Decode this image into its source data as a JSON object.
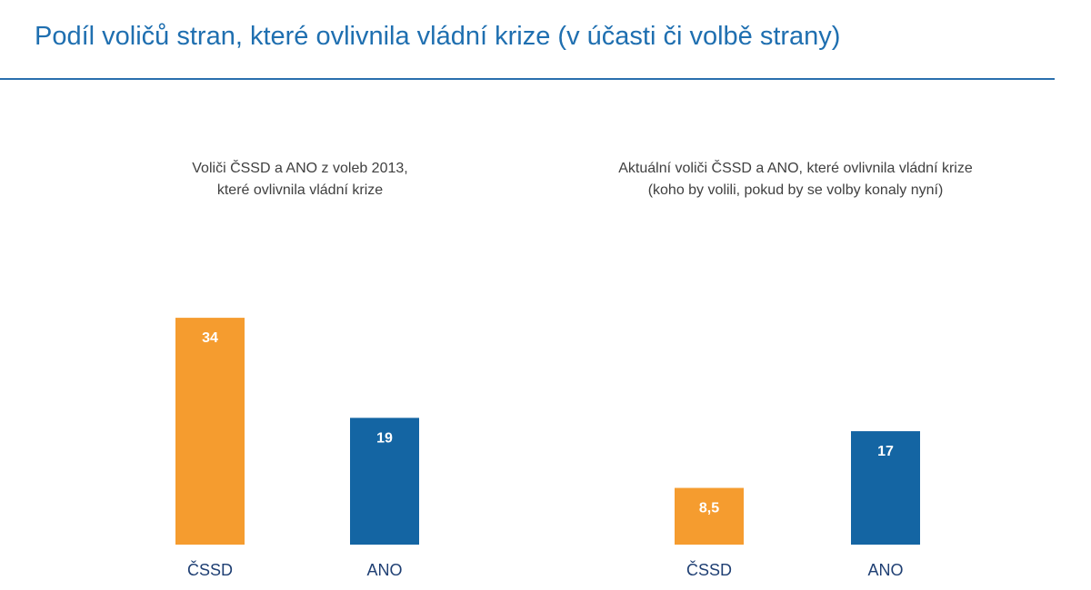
{
  "header": {
    "title": "Podíl voličů stran, které ovlivnila vládní krize (v účasti či volbě strany)"
  },
  "colors": {
    "cssd": "#f59c2f",
    "ano": "#1465a3",
    "title": "#1f6fb0",
    "label": "#1f3f73"
  },
  "chart_data": [
    {
      "type": "bar",
      "title_lines": [
        "Voliči ČSSD a ANO z voleb 2013,",
        "které ovlivnila vládní krize"
      ],
      "categories": [
        "ČSSD",
        "ANO"
      ],
      "values": [
        34,
        19
      ],
      "value_labels": [
        "34",
        "19"
      ],
      "grid": false,
      "ylim": [
        0,
        40
      ]
    },
    {
      "type": "bar",
      "title_lines": [
        "Aktuální  voliči ČSSD a ANO, které ovlivnila vládní krize",
        "(koho by volili, pokud by se volby konaly nyní)"
      ],
      "categories": [
        "ČSSD",
        "ANO"
      ],
      "values": [
        8.5,
        17
      ],
      "value_labels": [
        "8,5",
        "17"
      ],
      "grid": false,
      "ylim": [
        0,
        40
      ]
    }
  ]
}
